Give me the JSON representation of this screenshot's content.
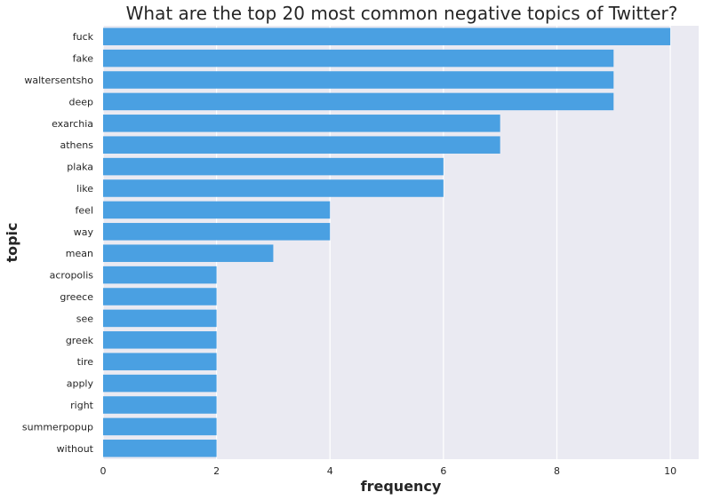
{
  "chart_data": {
    "type": "bar",
    "orientation": "horizontal",
    "title": "What are the top 20 most common negative topics of Twitter?",
    "xlabel": "frequency",
    "ylabel": "topic",
    "categories": [
      "fuck",
      "fake",
      "waltersentsho",
      "deep",
      "exarchia",
      "athens",
      "plaka",
      "like",
      "feel",
      "way",
      "mean",
      "acropolis",
      "greece",
      "see",
      "greek",
      "tire",
      "apply",
      "right",
      "summerpopup",
      "without"
    ],
    "values": [
      10,
      9,
      9,
      9,
      7,
      7,
      6,
      6,
      4,
      4,
      3,
      2,
      2,
      2,
      2,
      2,
      2,
      2,
      2,
      2
    ],
    "xlim": [
      0,
      10.5
    ],
    "xticks": [
      0,
      2,
      4,
      6,
      8,
      10
    ],
    "grid": true,
    "bar_color": "#4aa0e2",
    "background_color": "#eaeaf2"
  }
}
